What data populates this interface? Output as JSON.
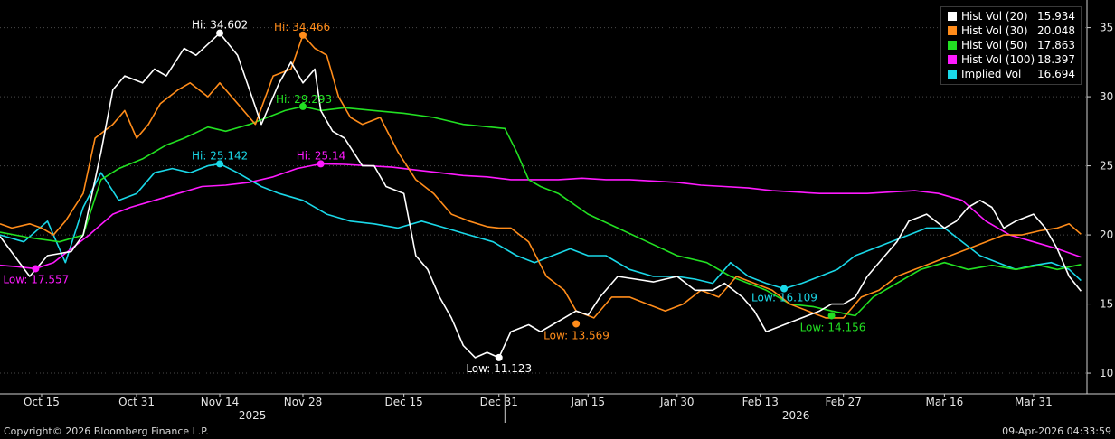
{
  "chart_data": {
    "type": "line",
    "x_ticks": [
      "Oct 15",
      "Oct 31",
      "Nov 14",
      "Nov 28",
      "Dec 15",
      "Dec 31",
      "Jan 15",
      "Jan 30",
      "Feb 13",
      "Feb 27",
      "Mar 16",
      "Mar 31"
    ],
    "x_ticks_dates": [
      "2025-10-15",
      "2025-10-31",
      "2025-11-14",
      "2025-11-28",
      "2025-12-15",
      "2025-12-31",
      "2026-01-15",
      "2026-01-30",
      "2026-02-13",
      "2026-02-27",
      "2026-03-16",
      "2026-03-31"
    ],
    "year_labels": [
      "2025",
      "2026"
    ],
    "xlim": [
      "2025-10-08",
      "2026-04-09"
    ],
    "ylim": [
      8.5,
      37
    ],
    "y_ticks": [
      10,
      15,
      20,
      25,
      30,
      35
    ],
    "y_axis_side": "right",
    "grid": "horizontal dotted",
    "legend_position": "top-right",
    "series": [
      {
        "name": "Hist Vol (20)",
        "last": "15.934",
        "color": "#ffffff",
        "x": [
          "2025-10-08",
          "2025-10-13",
          "2025-10-16",
          "2025-10-20",
          "2025-10-22",
          "2025-10-25",
          "2025-10-27",
          "2025-10-29",
          "2025-11-01",
          "2025-11-03",
          "2025-11-05",
          "2025-11-08",
          "2025-11-10",
          "2025-11-14",
          "2025-11-17",
          "2025-11-19",
          "2025-11-21",
          "2025-11-24",
          "2025-11-26",
          "2025-11-28",
          "2025-11-30",
          "2025-12-01",
          "2025-12-03",
          "2025-12-05",
          "2025-12-08",
          "2025-12-10",
          "2025-12-12",
          "2025-12-15",
          "2025-12-17",
          "2025-12-19",
          "2025-12-21",
          "2025-12-23",
          "2025-12-25",
          "2025-12-27",
          "2025-12-29",
          "2025-12-31",
          "2026-01-02",
          "2026-01-05",
          "2026-01-07",
          "2026-01-09",
          "2026-01-11",
          "2026-01-13",
          "2026-01-15",
          "2026-01-17",
          "2026-01-20",
          "2026-01-23",
          "2026-01-26",
          "2026-01-28",
          "2026-01-30",
          "2026-02-02",
          "2026-02-05",
          "2026-02-07",
          "2026-02-10",
          "2026-02-12",
          "2026-02-14",
          "2026-02-17",
          "2026-02-20",
          "2026-02-23",
          "2026-02-25",
          "2026-02-27",
          "2026-03-01",
          "2026-03-03",
          "2026-03-06",
          "2026-03-08",
          "2026-03-10",
          "2026-03-13",
          "2026-03-16",
          "2026-03-18",
          "2026-03-20",
          "2026-03-22",
          "2026-03-24",
          "2026-03-26",
          "2026-03-28",
          "2026-03-31",
          "2026-04-02",
          "2026-04-04",
          "2026-04-06",
          "2026-04-08"
        ],
        "y": [
          19.9,
          17.0,
          18.5,
          18.8,
          20.0,
          26.0,
          30.5,
          31.5,
          31.0,
          32.0,
          31.5,
          33.5,
          33.0,
          34.602,
          33.0,
          30.5,
          28.0,
          31.0,
          32.5,
          31.0,
          32.0,
          29.0,
          27.5,
          27.0,
          25.0,
          25.0,
          23.5,
          23.0,
          18.5,
          17.5,
          15.5,
          14.0,
          12.0,
          11.123,
          11.5,
          11.123,
          13.0,
          13.5,
          13.0,
          13.5,
          14.0,
          14.5,
          14.2,
          15.5,
          17.0,
          16.8,
          16.6,
          16.8,
          17.0,
          16.0,
          16.0,
          16.5,
          15.5,
          14.5,
          13.0,
          13.5,
          14.0,
          14.5,
          15.0,
          15.0,
          15.5,
          17.0,
          18.5,
          19.5,
          21.0,
          21.5,
          20.5,
          21.0,
          22.0,
          22.5,
          22.0,
          20.5,
          21.0,
          21.5,
          20.5,
          19.0,
          17.0,
          15.934
        ]
      },
      {
        "name": "Hist Vol (30)",
        "last": "20.048",
        "color": "#ff8c1a",
        "x": [
          "2025-10-08",
          "2025-10-10",
          "2025-10-13",
          "2025-10-15",
          "2025-10-17",
          "2025-10-19",
          "2025-10-22",
          "2025-10-24",
          "2025-10-27",
          "2025-10-29",
          "2025-10-31",
          "2025-11-02",
          "2025-11-04",
          "2025-11-07",
          "2025-11-09",
          "2025-11-12",
          "2025-11-14",
          "2025-11-17",
          "2025-11-20",
          "2025-11-23",
          "2025-11-26",
          "2025-11-28",
          "2025-11-30",
          "2025-12-02",
          "2025-12-04",
          "2025-12-06",
          "2025-12-08",
          "2025-12-11",
          "2025-12-14",
          "2025-12-17",
          "2025-12-20",
          "2025-12-23",
          "2025-12-26",
          "2025-12-29",
          "2025-12-31",
          "2026-01-02",
          "2026-01-05",
          "2026-01-08",
          "2026-01-11",
          "2026-01-13",
          "2026-01-16",
          "2026-01-19",
          "2026-01-22",
          "2026-01-25",
          "2026-01-28",
          "2026-01-31",
          "2026-02-03",
          "2026-02-06",
          "2026-02-09",
          "2026-02-12",
          "2026-02-15",
          "2026-02-18",
          "2026-02-21",
          "2026-02-24",
          "2026-02-27",
          "2026-03-02",
          "2026-03-05",
          "2026-03-08",
          "2026-03-11",
          "2026-03-14",
          "2026-03-17",
          "2026-03-20",
          "2026-03-23",
          "2026-03-26",
          "2026-03-29",
          "2026-04-01",
          "2026-04-04",
          "2026-04-06",
          "2026-04-08"
        ],
        "y": [
          20.8,
          20.5,
          20.8,
          20.5,
          20.0,
          21.0,
          23.0,
          27.0,
          28.0,
          29.0,
          27.0,
          28.0,
          29.5,
          30.5,
          31.0,
          30.0,
          31.0,
          29.5,
          28.0,
          31.5,
          32.0,
          34.466,
          33.5,
          33.0,
          30.0,
          28.5,
          28.0,
          28.5,
          26.0,
          24.0,
          23.0,
          21.5,
          21.0,
          20.6,
          20.5,
          20.5,
          19.5,
          17.0,
          16.0,
          14.5,
          14.0,
          15.5,
          15.5,
          15.0,
          14.5,
          15.0,
          16.0,
          15.5,
          17.0,
          16.5,
          16.0,
          15.0,
          14.5,
          14.0,
          14.0,
          15.5,
          16.0,
          17.0,
          17.5,
          18.0,
          18.5,
          19.0,
          19.5,
          20.0,
          20.0,
          20.3,
          20.5,
          20.8,
          20.048
        ]
      },
      {
        "name": "Hist Vol (50)",
        "last": "17.863",
        "color": "#22e022",
        "x": [
          "2025-10-08",
          "2025-10-13",
          "2025-10-18",
          "2025-10-22",
          "2025-10-25",
          "2025-10-28",
          "2025-11-01",
          "2025-11-05",
          "2025-11-08",
          "2025-11-12",
          "2025-11-15",
          "2025-11-19",
          "2025-11-22",
          "2025-11-25",
          "2025-11-28",
          "2025-12-01",
          "2025-12-05",
          "2025-12-10",
          "2025-12-15",
          "2025-12-20",
          "2025-12-25",
          "2026-01-01",
          "2026-01-03",
          "2026-01-05",
          "2026-01-07",
          "2026-01-10",
          "2026-01-15",
          "2026-01-20",
          "2026-01-25",
          "2026-01-30",
          "2026-02-04",
          "2026-02-08",
          "2026-02-11",
          "2026-02-14",
          "2026-02-18",
          "2026-02-22",
          "2026-02-25",
          "2026-03-01",
          "2026-03-04",
          "2026-03-08",
          "2026-03-12",
          "2026-03-16",
          "2026-03-20",
          "2026-03-24",
          "2026-03-28",
          "2026-04-01",
          "2026-04-04",
          "2026-04-08"
        ],
        "y": [
          20.2,
          19.8,
          19.5,
          20.0,
          24.0,
          24.8,
          25.5,
          26.5,
          27.0,
          27.8,
          27.5,
          28.0,
          28.5,
          29.0,
          29.293,
          29.0,
          29.2,
          29.0,
          28.8,
          28.5,
          28.0,
          27.7,
          26.0,
          24.0,
          23.5,
          23.0,
          21.5,
          20.5,
          19.5,
          18.5,
          18.0,
          17.0,
          16.5,
          16.0,
          15.0,
          14.8,
          14.5,
          14.156,
          15.5,
          16.5,
          17.5,
          18.0,
          17.5,
          17.8,
          17.5,
          17.8,
          17.5,
          17.863
        ]
      },
      {
        "name": "Hist Vol (100)",
        "last": "18.397",
        "color": "#ff1aff",
        "x": [
          "2025-10-08",
          "2025-10-11",
          "2025-10-14",
          "2025-10-17",
          "2025-10-20",
          "2025-10-23",
          "2025-10-27",
          "2025-10-30",
          "2025-11-03",
          "2025-11-07",
          "2025-11-11",
          "2025-11-15",
          "2025-11-19",
          "2025-11-23",
          "2025-11-27",
          "2025-12-01",
          "2025-12-05",
          "2025-12-09",
          "2025-12-13",
          "2025-12-17",
          "2025-12-21",
          "2025-12-25",
          "2025-12-29",
          "2026-01-02",
          "2026-01-06",
          "2026-01-10",
          "2026-01-14",
          "2026-01-18",
          "2026-01-22",
          "2026-01-26",
          "2026-01-30",
          "2026-02-03",
          "2026-02-07",
          "2026-02-11",
          "2026-02-15",
          "2026-02-19",
          "2026-02-23",
          "2026-02-27",
          "2026-03-03",
          "2026-03-07",
          "2026-03-11",
          "2026-03-15",
          "2026-03-19",
          "2026-03-23",
          "2026-03-27",
          "2026-03-31",
          "2026-04-04",
          "2026-04-08"
        ],
        "y": [
          17.8,
          17.7,
          17.557,
          18.0,
          19.0,
          20.0,
          21.5,
          22.0,
          22.5,
          23.0,
          23.5,
          23.6,
          23.8,
          24.2,
          24.8,
          25.14,
          25.1,
          25.0,
          24.9,
          24.7,
          24.5,
          24.3,
          24.2,
          24.0,
          24.0,
          24.0,
          24.1,
          24.0,
          24.0,
          23.9,
          23.8,
          23.6,
          23.5,
          23.4,
          23.2,
          23.1,
          23.0,
          23.0,
          23.0,
          23.1,
          23.2,
          23.0,
          22.5,
          21.0,
          20.0,
          19.5,
          19.0,
          18.397
        ]
      },
      {
        "name": "Implied Vol",
        "last": "16.694",
        "color": "#1ad8e8",
        "x": [
          "2025-10-08",
          "2025-10-12",
          "2025-10-16",
          "2025-10-19",
          "2025-10-22",
          "2025-10-25",
          "2025-10-28",
          "2025-10-31",
          "2025-11-03",
          "2025-11-06",
          "2025-11-09",
          "2025-11-12",
          "2025-11-14",
          "2025-11-17",
          "2025-11-21",
          "2025-11-24",
          "2025-11-28",
          "2025-12-02",
          "2025-12-06",
          "2025-12-10",
          "2025-12-14",
          "2025-12-18",
          "2025-12-22",
          "2025-12-26",
          "2025-12-30",
          "2026-01-03",
          "2026-01-06",
          "2026-01-09",
          "2026-01-12",
          "2026-01-15",
          "2026-01-18",
          "2026-01-22",
          "2026-01-26",
          "2026-01-30",
          "2026-02-02",
          "2026-02-05",
          "2026-02-08",
          "2026-02-11",
          "2026-02-14",
          "2026-02-17",
          "2026-02-20",
          "2026-02-23",
          "2026-02-26",
          "2026-03-01",
          "2026-03-04",
          "2026-03-07",
          "2026-03-10",
          "2026-03-13",
          "2026-03-16",
          "2026-03-19",
          "2026-03-22",
          "2026-03-25",
          "2026-03-28",
          "2026-03-31",
          "2026-04-03",
          "2026-04-06",
          "2026-04-08"
        ],
        "y": [
          20.0,
          19.5,
          21.0,
          18.0,
          22.0,
          24.5,
          22.5,
          23.0,
          24.5,
          24.8,
          24.5,
          25.0,
          25.142,
          24.5,
          23.5,
          23.0,
          22.5,
          21.5,
          21.0,
          20.8,
          20.5,
          21.0,
          20.5,
          20.0,
          19.5,
          18.5,
          18.0,
          18.5,
          19.0,
          18.5,
          18.5,
          17.5,
          17.0,
          17.0,
          16.8,
          16.5,
          18.0,
          17.0,
          16.5,
          16.109,
          16.5,
          17.0,
          17.5,
          18.5,
          19.0,
          19.5,
          20.0,
          20.5,
          20.5,
          19.5,
          18.5,
          18.0,
          17.5,
          17.8,
          18.0,
          17.5,
          16.694
        ]
      }
    ],
    "annotations": [
      {
        "label": "Hi: 34.602",
        "series": 0,
        "x": "2025-11-14",
        "y": 34.602
      },
      {
        "label": "Low: 11.123",
        "series": 0,
        "x": "2025-12-31",
        "y": 11.123
      },
      {
        "label": "Hi: 34.466",
        "series": 1,
        "x": "2025-11-28",
        "y": 34.466
      },
      {
        "label": "Low: 13.569",
        "series": 1,
        "x": "2026-01-13",
        "y": 13.569
      },
      {
        "label": "Hi: 29.293",
        "series": 2,
        "x": "2025-11-28",
        "y": 29.293
      },
      {
        "label": "Low: 14.156",
        "series": 2,
        "x": "2026-02-25",
        "y": 14.156
      },
      {
        "label": "Hi: 25.14",
        "series": 3,
        "x": "2025-12-01",
        "y": 25.14
      },
      {
        "label": "Low: 17.557",
        "series": 3,
        "x": "2025-10-14",
        "y": 17.557
      },
      {
        "label": "Hi: 25.142",
        "series": 4,
        "x": "2025-11-14",
        "y": 25.142
      },
      {
        "label": "Low: 16.109",
        "series": 4,
        "x": "2026-02-17",
        "y": 16.109
      }
    ]
  },
  "footer": {
    "copyright": "Copyright© 2026 Bloomberg Finance L.P.",
    "timestamp": "09-Apr-2026 04:33:59"
  }
}
